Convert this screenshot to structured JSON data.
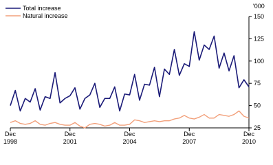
{
  "chart_data": {
    "type": "line",
    "y_unit_label": "'000",
    "categories": [
      "Dec 1998",
      null,
      null,
      null,
      null,
      null,
      null,
      null,
      null,
      null,
      null,
      null,
      "Dec 2001",
      null,
      null,
      null,
      null,
      null,
      null,
      null,
      null,
      null,
      null,
      null,
      "Dec 2004",
      null,
      null,
      null,
      null,
      null,
      null,
      null,
      null,
      null,
      null,
      null,
      "Dec 2007",
      null,
      null,
      null,
      null,
      null,
      null,
      null,
      null,
      null,
      null,
      null,
      "Dec 2010"
    ],
    "series": [
      {
        "name": "Total increase",
        "color": "#1b1b78",
        "values": [
          50,
          67,
          44,
          58,
          54,
          69,
          45,
          60,
          58,
          87,
          53,
          58,
          61,
          70,
          46,
          58,
          62,
          75,
          48,
          58,
          58,
          71,
          44,
          63,
          62,
          85,
          56,
          74,
          73,
          93,
          60,
          91,
          85,
          113,
          84,
          97,
          94,
          133,
          101,
          118,
          113,
          128,
          92,
          109,
          89,
          106,
          70,
          79,
          71
        ]
      },
      {
        "name": "Natural increase",
        "color": "#f2a07b",
        "values": [
          31,
          33,
          30,
          29,
          30,
          33,
          29,
          28,
          30,
          31,
          29,
          28,
          28,
          31,
          27,
          25,
          29,
          30,
          29,
          27,
          28,
          31,
          28,
          28,
          29,
          34,
          33,
          31,
          32,
          33,
          32,
          33,
          33,
          35,
          36,
          39,
          36,
          35,
          37,
          40,
          36,
          36,
          40,
          39,
          38,
          40,
          44,
          38,
          36
        ]
      }
    ],
    "ylim": [
      25,
      150
    ],
    "yticks": [
      25,
      50,
      75,
      100,
      125,
      150
    ]
  }
}
